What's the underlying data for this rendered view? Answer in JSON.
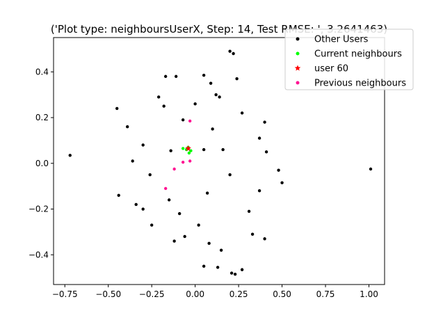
{
  "chart_data": {
    "type": "scatter",
    "title": "('Plot type: neighboursUserX, Step: 14, Test RMSE: ', 3.2641463)",
    "xlabel": "",
    "ylabel": "",
    "xlim": [
      -0.815,
      1.09
    ],
    "ylim": [
      -0.53,
      0.55
    ],
    "x_ticks": [
      -0.75,
      -0.5,
      -0.25,
      0.0,
      0.25,
      0.5,
      0.75,
      1.0
    ],
    "x_tick_labels": [
      "−0.75",
      "−0.50",
      "−0.25",
      "0.00",
      "0.25",
      "0.50",
      "0.75",
      "1.00"
    ],
    "y_ticks": [
      -0.4,
      -0.2,
      0.0,
      0.2,
      0.4
    ],
    "y_tick_labels": [
      "−0.4",
      "−0.2",
      "0.0",
      "0.2",
      "0.4"
    ],
    "grid": false,
    "legend_position": "top-right",
    "legend": [
      {
        "label": "Other Users",
        "marker": "dot",
        "color": "#000000"
      },
      {
        "label": "Current neighbours",
        "marker": "dot",
        "color": "#00ff00"
      },
      {
        "label": "user 60",
        "marker": "star",
        "color": "#ff0000"
      },
      {
        "label": "Previous neighbours",
        "marker": "dot",
        "color": "#ff1493"
      }
    ],
    "series": [
      {
        "name": "Other Users",
        "color": "#000000",
        "marker": "dot",
        "points": [
          [
            -0.72,
            0.035
          ],
          [
            1.01,
            -0.025
          ],
          [
            0.5,
            -0.085
          ],
          [
            0.2,
            0.49
          ],
          [
            0.22,
            0.48
          ],
          [
            -0.17,
            0.38
          ],
          [
            0.05,
            0.385
          ],
          [
            0.27,
            -0.465
          ],
          [
            0.21,
            -0.48
          ],
          [
            0.23,
            -0.485
          ],
          [
            0.05,
            -0.45
          ],
          [
            0.13,
            -0.455
          ],
          [
            -0.14,
            0.055
          ],
          [
            0.0,
            0.26
          ],
          [
            -0.44,
            -0.14
          ],
          [
            0.4,
            -0.33
          ],
          [
            0.4,
            0.18
          ],
          [
            0.12,
            0.3
          ],
          [
            -0.3,
            0.08
          ],
          [
            0.08,
            -0.35
          ],
          [
            -0.11,
            0.38
          ],
          [
            0.14,
            0.29
          ],
          [
            -0.34,
            -0.18
          ],
          [
            -0.45,
            0.24
          ],
          [
            0.48,
            -0.03
          ],
          [
            0.37,
            0.11
          ],
          [
            -0.21,
            0.29
          ],
          [
            -0.06,
            -0.32
          ],
          [
            0.15,
            -0.38
          ],
          [
            0.31,
            -0.21
          ],
          [
            -0.25,
            -0.27
          ],
          [
            0.24,
            0.37
          ],
          [
            -0.07,
            0.19
          ],
          [
            0.07,
            -0.13
          ],
          [
            -0.36,
            0.01
          ],
          [
            0.41,
            0.05
          ],
          [
            -0.26,
            -0.05
          ],
          [
            0.2,
            -0.05
          ],
          [
            0.1,
            0.15
          ],
          [
            -0.15,
            -0.16
          ],
          [
            0.33,
            -0.31
          ],
          [
            -0.39,
            0.16
          ],
          [
            0.05,
            0.06
          ],
          [
            -0.18,
            0.25
          ],
          [
            0.27,
            0.22
          ],
          [
            -0.09,
            -0.22
          ],
          [
            0.02,
            -0.27
          ],
          [
            0.16,
            0.06
          ],
          [
            -0.3,
            -0.2
          ],
          [
            0.37,
            -0.12
          ],
          [
            0.09,
            0.35
          ],
          [
            -0.12,
            -0.34
          ]
        ]
      },
      {
        "name": "Current neighbours",
        "color": "#00ff00",
        "marker": "dot",
        "points": [
          [
            -0.07,
            0.065
          ],
          [
            -0.05,
            0.06
          ],
          [
            -0.04,
            0.07
          ],
          [
            -0.025,
            0.055
          ],
          [
            -0.035,
            0.045
          ]
        ]
      },
      {
        "name": "user 60",
        "color": "#ff0000",
        "marker": "star",
        "points": [
          [
            -0.04,
            0.065
          ]
        ]
      },
      {
        "name": "Previous neighbours",
        "color": "#ff1493",
        "marker": "dot",
        "points": [
          [
            -0.03,
            0.185
          ],
          [
            -0.17,
            -0.11
          ],
          [
            -0.12,
            -0.025
          ],
          [
            -0.07,
            0.005
          ],
          [
            -0.03,
            0.01
          ]
        ]
      }
    ]
  }
}
